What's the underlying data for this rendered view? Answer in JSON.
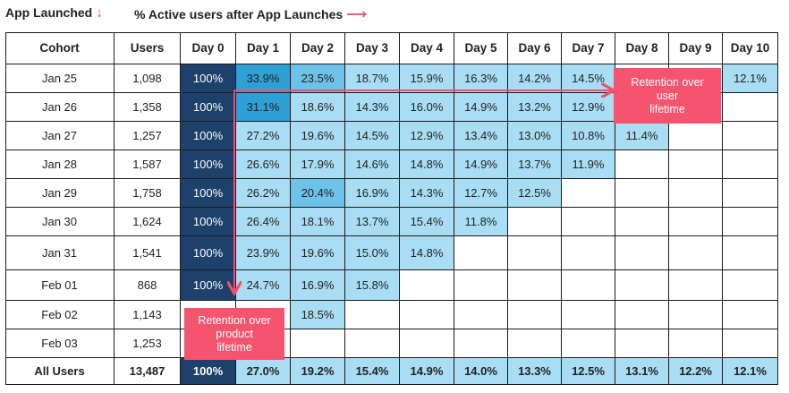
{
  "header": {
    "left_label": "App Launched",
    "right_label": "% Active users after App Launches"
  },
  "callouts": {
    "user_retention": [
      "Retention over",
      "user",
      "lifetime"
    ],
    "product_retention": [
      "Retention over",
      "product",
      "lifetime"
    ]
  },
  "colors": {
    "day0": "#1e416b",
    "accent_cell": "#2fa0d6",
    "mid_cell": "#6cc2e8",
    "light_cell": "#a9ddf3",
    "callout": "#f4546e",
    "arrow": "#f0506e"
  },
  "chart_data": {
    "type": "table",
    "columns": [
      "Cohort",
      "Users",
      "Day 0",
      "Day 1",
      "Day 2",
      "Day 3",
      "Day 4",
      "Day 5",
      "Day 6",
      "Day 7",
      "Day 8",
      "Day 9",
      "Day 10"
    ],
    "rows": [
      {
        "cohort": "Jan 25",
        "users": "1,098",
        "values": [
          "100%",
          "33.9%",
          "23.5%",
          "18.7%",
          "15.9%",
          "16.3%",
          "14.2%",
          "14.5%",
          "",
          "",
          "12.1%"
        ]
      },
      {
        "cohort": "Jan 26",
        "users": "1,358",
        "values": [
          "100%",
          "31.1%",
          "18.6%",
          "14.3%",
          "16.0%",
          "14.9%",
          "13.2%",
          "12.9%",
          "",
          "",
          ""
        ]
      },
      {
        "cohort": "Jan 27",
        "users": "1,257",
        "values": [
          "100%",
          "27.2%",
          "19.6%",
          "14.5%",
          "12.9%",
          "13.4%",
          "13.0%",
          "10.8%",
          "11.4%",
          "",
          ""
        ]
      },
      {
        "cohort": "Jan 28",
        "users": "1,587",
        "values": [
          "100%",
          "26.6%",
          "17.9%",
          "14.6%",
          "14.8%",
          "14.9%",
          "13.7%",
          "11.9%",
          "",
          "",
          ""
        ]
      },
      {
        "cohort": "Jan 29",
        "users": "1,758",
        "values": [
          "100%",
          "26.2%",
          "20.4%",
          "16.9%",
          "14.3%",
          "12.7%",
          "12.5%",
          "",
          "",
          "",
          ""
        ]
      },
      {
        "cohort": "Jan 30",
        "users": "1,624",
        "values": [
          "100%",
          "26.4%",
          "18.1%",
          "13.7%",
          "15.4%",
          "11.8%",
          "",
          "",
          "",
          "",
          ""
        ]
      },
      {
        "cohort": "Jan 31",
        "users": "1,541",
        "values": [
          "100%",
          "23.9%",
          "19.6%",
          "15.0%",
          "14.8%",
          "",
          "",
          "",
          "",
          "",
          ""
        ]
      },
      {
        "cohort": "Feb 01",
        "users": "868",
        "values": [
          "100%",
          "24.7%",
          "16.9%",
          "15.8%",
          "",
          "",
          "",
          "",
          "",
          "",
          ""
        ]
      },
      {
        "cohort": "Feb 02",
        "users": "1,143",
        "values": [
          "",
          "",
          "18.5%",
          "",
          "",
          "",
          "",
          "",
          "",
          "",
          ""
        ]
      },
      {
        "cohort": "Feb 03",
        "users": "1,253",
        "values": [
          "",
          "",
          "",
          "",
          "",
          "",
          "",
          "",
          "",
          "",
          ""
        ]
      }
    ],
    "totals": {
      "cohort": "All Users",
      "users": "13,487",
      "values": [
        "100%",
        "27.0%",
        "19.2%",
        "15.4%",
        "14.9%",
        "14.0%",
        "13.3%",
        "12.5%",
        "13.1%",
        "12.2%",
        "12.1%"
      ]
    }
  }
}
